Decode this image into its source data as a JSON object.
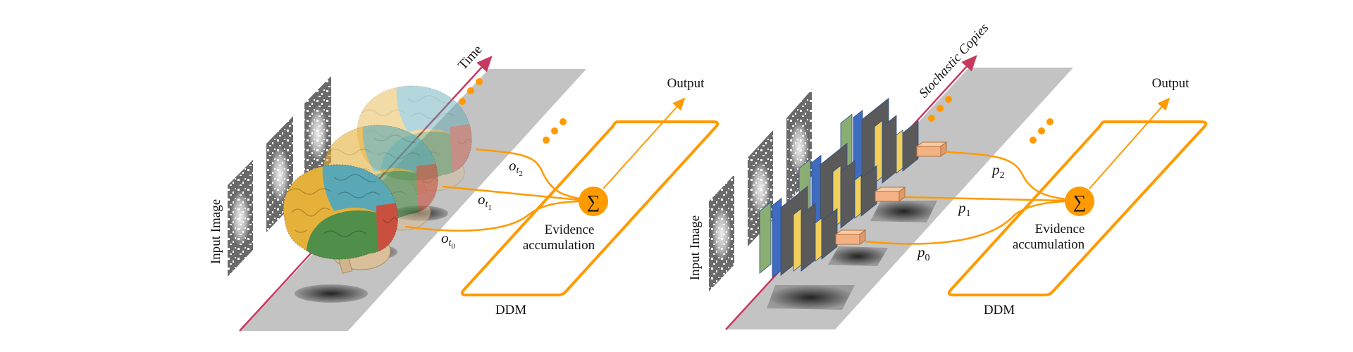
{
  "colors": {
    "orange": "#ff9a00",
    "axis": "#c8395f",
    "strip": "#c3c3c3",
    "image_bg": "#6a6a6a",
    "brain_yellow": "#e6b13a",
    "brain_teal": "#5aa8b5",
    "brain_green": "#4f8f4a",
    "brain_red": "#c9503e",
    "brain_tan": "#d9bf9a",
    "layer_green": "#8aad74",
    "layer_blue": "#3f6cc0",
    "layer_gray": "#5a5a5a",
    "layer_yellow": "#f2cf5b",
    "output_box": "#f4b183"
  },
  "left": {
    "axis_label": "Time",
    "input_label": "Input Image",
    "outputs": [
      {
        "base": "o",
        "sub": "t",
        "subsub": "0"
      },
      {
        "base": "o",
        "sub": "t",
        "subsub": "1"
      },
      {
        "base": "o",
        "sub": "t",
        "subsub": "2"
      }
    ],
    "sum_symbol": "∑",
    "output_label": "Output",
    "evidence_line1": "Evidence",
    "evidence_line2": "accumulation",
    "ddm_label": "DDM",
    "icons": [
      "brain-icon",
      "noisy-image-icon",
      "sum-icon"
    ]
  },
  "right": {
    "axis_label": "Stochastic Copies",
    "input_label": "Input Image",
    "outputs": [
      {
        "base": "p",
        "sub": "0"
      },
      {
        "base": "p",
        "sub": "1"
      },
      {
        "base": "p",
        "sub": "2"
      }
    ],
    "sum_symbol": "∑",
    "output_label": "Output",
    "evidence_line1": "Evidence",
    "evidence_line2": "accumulation",
    "ddm_label": "DDM",
    "icons": [
      "cnn-stack-icon",
      "noisy-image-icon",
      "sum-icon"
    ]
  }
}
